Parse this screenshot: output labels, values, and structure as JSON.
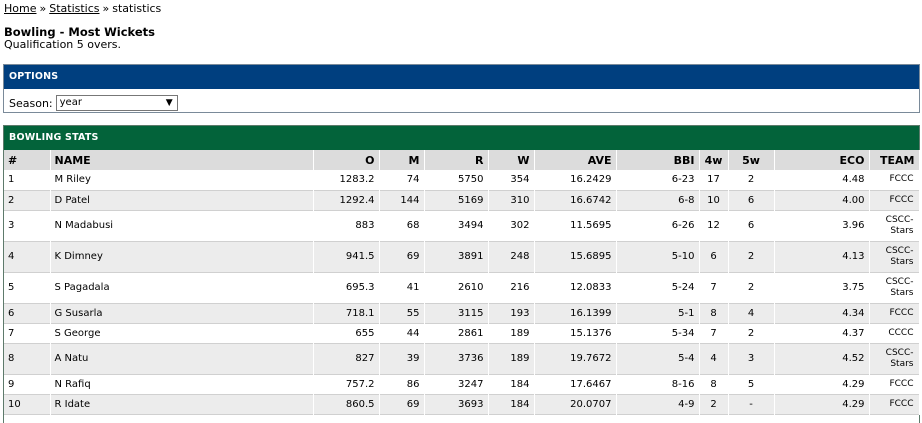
{
  "breadcrumb": {
    "home": "Home",
    "sep1": "»",
    "statistics": "Statistics",
    "sep2": "»",
    "current": "statistics"
  },
  "heading": {
    "title": "Bowling - Most Wickets",
    "subtitle": "Qualification 5 overs."
  },
  "options": {
    "header": "OPTIONS",
    "season_label": "Season:",
    "season_value": "year",
    "arrow": "▼"
  },
  "stats": {
    "header": "BOWLING STATS",
    "columns": [
      "#",
      "NAME",
      "O",
      "M",
      "R",
      "W",
      "AVE",
      "BBI",
      "4w",
      "5w",
      "ECO",
      "TEAM"
    ],
    "rows": [
      [
        "1",
        "M Riley",
        "1283.2",
        "74",
        "5750",
        "354",
        "16.2429",
        "6-23",
        "17",
        "2",
        "4.48",
        "FCCC"
      ],
      [
        "2",
        "D Patel",
        "1292.4",
        "144",
        "5169",
        "310",
        "16.6742",
        "6-8",
        "10",
        "6",
        "4.00",
        "FCCC"
      ],
      [
        "3",
        "N Madabusi",
        "883",
        "68",
        "3494",
        "302",
        "11.5695",
        "6-26",
        "12",
        "6",
        "3.96",
        "CSCC-\nStars"
      ],
      [
        "4",
        "K Dimney",
        "941.5",
        "69",
        "3891",
        "248",
        "15.6895",
        "5-10",
        "6",
        "2",
        "4.13",
        "CSCC-\nStars"
      ],
      [
        "5",
        "S Pagadala",
        "695.3",
        "41",
        "2610",
        "216",
        "12.0833",
        "5-24",
        "7",
        "2",
        "3.75",
        "CSCC-\nStars"
      ],
      [
        "6",
        "G Susarla",
        "718.1",
        "55",
        "3115",
        "193",
        "16.1399",
        "5-1",
        "8",
        "4",
        "4.34",
        "FCCC"
      ],
      [
        "7",
        "S George",
        "655",
        "44",
        "2861",
        "189",
        "15.1376",
        "5-34",
        "7",
        "2",
        "4.37",
        "CCCC"
      ],
      [
        "8",
        "A Natu",
        "827",
        "39",
        "3736",
        "189",
        "19.7672",
        "5-4",
        "4",
        "3",
        "4.52",
        "CSCC-\nStars"
      ],
      [
        "9",
        "N Rafiq",
        "757.2",
        "86",
        "3247",
        "184",
        "17.6467",
        "8-16",
        "8",
        "5",
        "4.29",
        "FCCC"
      ],
      [
        "10",
        "R Idate",
        "860.5",
        "69",
        "3693",
        "184",
        "20.0707",
        "4-9",
        "2",
        "-",
        "4.29",
        "FCCC"
      ]
    ]
  }
}
